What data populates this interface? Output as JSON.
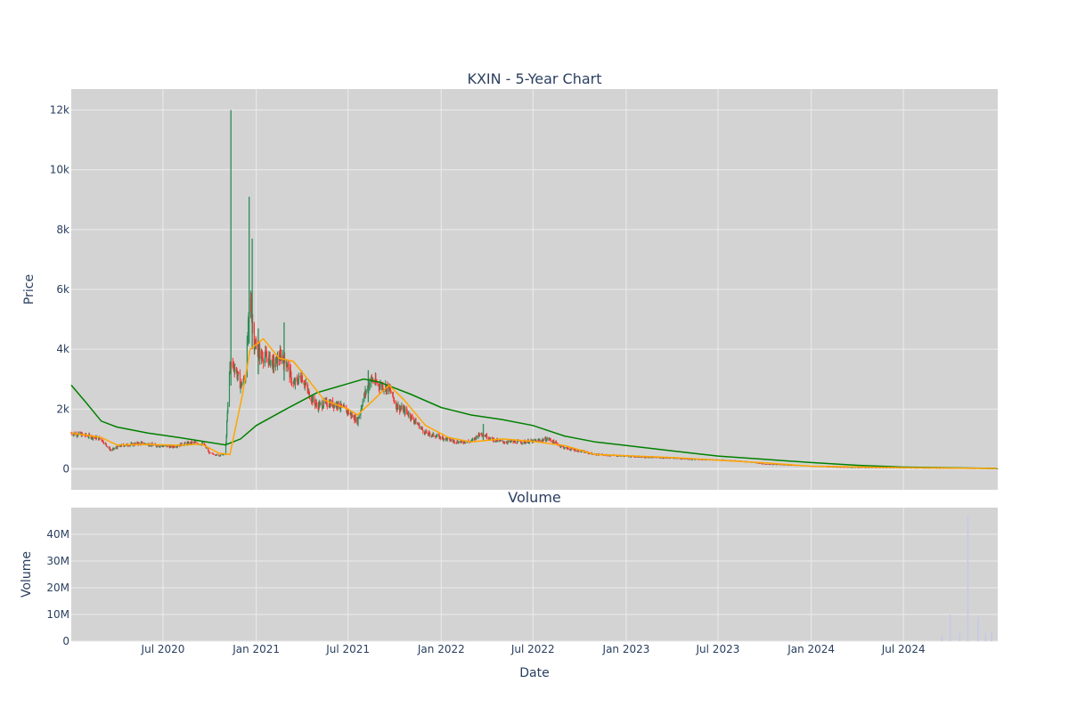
{
  "colors": {
    "background": "#ffffff",
    "plot_bg": "#d3d3d3",
    "grid": "#ebebeb",
    "text": "#2a3f5f",
    "candle_up": "#2e8b57",
    "candle_down": "#ff3333",
    "ma_short": "#ffa500",
    "ma_long": "#008000",
    "volume_bar": "#c6c8e8"
  },
  "chart_data": [
    {
      "type": "candlestick",
      "title": "KXIN - 5-Year Chart",
      "xlabel": "",
      "ylabel": "Price",
      "ylim": [
        -700,
        12700
      ],
      "yticks": [
        0,
        2000,
        4000,
        6000,
        8000,
        10000,
        12000
      ],
      "ytick_labels": [
        "0",
        "2k",
        "4k",
        "6k",
        "8k",
        "10k",
        "12k"
      ],
      "grid": true,
      "price_path": [
        [
          "2020-01-02",
          1200
        ],
        [
          "2020-01-20",
          1150
        ],
        [
          "2020-02-10",
          1080
        ],
        [
          "2020-03-01",
          1000
        ],
        [
          "2020-03-20",
          620
        ],
        [
          "2020-04-10",
          780
        ],
        [
          "2020-05-01",
          820
        ],
        [
          "2020-05-20",
          860
        ],
        [
          "2020-06-10",
          800
        ],
        [
          "2020-07-01",
          760
        ],
        [
          "2020-07-20",
          740
        ],
        [
          "2020-08-10",
          830
        ],
        [
          "2020-09-01",
          880
        ],
        [
          "2020-09-20",
          820
        ],
        [
          "2020-10-01",
          520
        ],
        [
          "2020-10-20",
          450
        ],
        [
          "2020-11-01",
          500
        ],
        [
          "2020-11-10",
          3500
        ],
        [
          "2020-11-20",
          3400
        ],
        [
          "2020-12-01",
          2800
        ],
        [
          "2020-12-10",
          3000
        ],
        [
          "2020-12-20",
          5800
        ],
        [
          "2020-12-28",
          4200
        ],
        [
          "2021-01-10",
          3800
        ],
        [
          "2021-01-25",
          3700
        ],
        [
          "2021-02-05",
          3500
        ],
        [
          "2021-02-20",
          3800
        ],
        [
          "2021-03-01",
          3600
        ],
        [
          "2021-03-15",
          2800
        ],
        [
          "2021-04-01",
          3100
        ],
        [
          "2021-04-15",
          2500
        ],
        [
          "2021-05-01",
          2100
        ],
        [
          "2021-05-20",
          2200
        ],
        [
          "2021-06-10",
          2150
        ],
        [
          "2021-07-01",
          1900
        ],
        [
          "2021-07-20",
          1600
        ],
        [
          "2021-08-01",
          2400
        ],
        [
          "2021-08-15",
          3000
        ],
        [
          "2021-09-01",
          2800
        ],
        [
          "2021-09-20",
          2700
        ],
        [
          "2021-10-05",
          2100
        ],
        [
          "2021-10-25",
          1900
        ],
        [
          "2021-11-15",
          1500
        ],
        [
          "2021-12-01",
          1200
        ],
        [
          "2022-01-01",
          1050
        ],
        [
          "2022-02-01",
          900
        ],
        [
          "2022-03-01",
          920
        ],
        [
          "2022-03-20",
          1200
        ],
        [
          "2022-04-10",
          1000
        ],
        [
          "2022-05-01",
          900
        ],
        [
          "2022-06-01",
          900
        ],
        [
          "2022-07-01",
          920
        ],
        [
          "2022-08-01",
          1000
        ],
        [
          "2022-09-01",
          700
        ],
        [
          "2022-10-01",
          600
        ],
        [
          "2022-11-01",
          480
        ],
        [
          "2022-12-01",
          450
        ],
        [
          "2023-01-01",
          430
        ],
        [
          "2023-02-01",
          400
        ],
        [
          "2023-03-01",
          380
        ],
        [
          "2023-04-01",
          360
        ],
        [
          "2023-05-01",
          330
        ],
        [
          "2023-06-01",
          310
        ],
        [
          "2023-07-01",
          300
        ],
        [
          "2023-08-01",
          270
        ],
        [
          "2023-09-01",
          230
        ],
        [
          "2023-10-01",
          160
        ],
        [
          "2023-11-01",
          140
        ],
        [
          "2023-12-01",
          120
        ],
        [
          "2024-01-01",
          90
        ],
        [
          "2024-02-01",
          70
        ],
        [
          "2024-03-01",
          50
        ],
        [
          "2024-05-01",
          40
        ],
        [
          "2024-07-01",
          30
        ],
        [
          "2024-09-01",
          25
        ],
        [
          "2024-11-01",
          15
        ],
        [
          "2025-01-01",
          10
        ]
      ],
      "spikes": [
        {
          "date": "2020-11-12",
          "high": 12000
        },
        {
          "date": "2020-12-18",
          "high": 9100
        },
        {
          "date": "2020-12-24",
          "high": 7700
        },
        {
          "date": "2021-01-05",
          "high": 4700
        },
        {
          "date": "2021-02-25",
          "high": 4900
        },
        {
          "date": "2021-08-10",
          "high": 3300
        },
        {
          "date": "2022-03-25",
          "high": 1500
        }
      ],
      "ma_short": [
        [
          "2020-01-02",
          1200
        ],
        [
          "2020-03-01",
          1050
        ],
        [
          "2020-04-01",
          800
        ],
        [
          "2020-06-01",
          820
        ],
        [
          "2020-08-01",
          790
        ],
        [
          "2020-09-15",
          830
        ],
        [
          "2020-10-20",
          520
        ],
        [
          "2020-11-10",
          480
        ],
        [
          "2020-12-05",
          2500
        ],
        [
          "2020-12-20",
          4000
        ],
        [
          "2021-01-15",
          4350
        ],
        [
          "2021-02-15",
          3700
        ],
        [
          "2021-03-15",
          3600
        ],
        [
          "2021-04-15",
          2950
        ],
        [
          "2021-05-15",
          2300
        ],
        [
          "2021-07-01",
          2000
        ],
        [
          "2021-07-20",
          1800
        ],
        [
          "2021-08-20",
          2300
        ],
        [
          "2021-09-20",
          2800
        ],
        [
          "2021-10-20",
          2300
        ],
        [
          "2021-12-01",
          1450
        ],
        [
          "2022-01-15",
          1050
        ],
        [
          "2022-03-01",
          900
        ],
        [
          "2022-05-01",
          1000
        ],
        [
          "2022-07-01",
          920
        ],
        [
          "2022-09-01",
          780
        ],
        [
          "2022-11-01",
          480
        ],
        [
          "2023-01-01",
          440
        ],
        [
          "2023-04-01",
          380
        ],
        [
          "2023-07-01",
          290
        ],
        [
          "2023-10-01",
          200
        ],
        [
          "2024-01-01",
          90
        ],
        [
          "2024-07-01",
          40
        ],
        [
          "2025-01-01",
          15
        ]
      ],
      "ma_long": [
        [
          "2020-01-02",
          2800
        ],
        [
          "2020-02-01",
          2200
        ],
        [
          "2020-03-01",
          1600
        ],
        [
          "2020-04-01",
          1400
        ],
        [
          "2020-06-01",
          1200
        ],
        [
          "2020-08-01",
          1050
        ],
        [
          "2020-11-01",
          800
        ],
        [
          "2020-12-01",
          1000
        ],
        [
          "2021-01-01",
          1450
        ],
        [
          "2021-03-01",
          2000
        ],
        [
          "2021-05-01",
          2550
        ],
        [
          "2021-07-01",
          2850
        ],
        [
          "2021-08-01",
          3000
        ],
        [
          "2021-09-01",
          2900
        ],
        [
          "2021-11-01",
          2500
        ],
        [
          "2022-01-01",
          2050
        ],
        [
          "2022-03-01",
          1800
        ],
        [
          "2022-05-01",
          1650
        ],
        [
          "2022-07-01",
          1450
        ],
        [
          "2022-09-01",
          1100
        ],
        [
          "2022-11-01",
          900
        ],
        [
          "2023-01-01",
          780
        ],
        [
          "2023-04-01",
          600
        ],
        [
          "2023-07-01",
          430
        ],
        [
          "2023-10-01",
          320
        ],
        [
          "2024-01-01",
          210
        ],
        [
          "2024-04-01",
          120
        ],
        [
          "2024-07-01",
          60
        ],
        [
          "2025-01-01",
          15
        ]
      ]
    },
    {
      "type": "bar",
      "title": "Volume",
      "xlabel": "Date",
      "ylabel": "Volume",
      "ylim": [
        0,
        50000000
      ],
      "yticks": [
        0,
        10000000,
        20000000,
        30000000,
        40000000
      ],
      "ytick_labels": [
        "0",
        "10M",
        "20M",
        "30M",
        "40M"
      ],
      "grid": true,
      "x": [
        "2024-09-15",
        "2024-10-01",
        "2024-10-20",
        "2024-11-05",
        "2024-11-25",
        "2024-12-10",
        "2024-12-22"
      ],
      "values": [
        2000000,
        10000000,
        3000000,
        47000000,
        9000000,
        3000000,
        3500000
      ]
    }
  ],
  "x_axis": {
    "range": [
      "2020-01-02",
      "2025-01-03"
    ],
    "ticks": [
      "2020-07-01",
      "2021-01-01",
      "2021-07-01",
      "2022-01-01",
      "2022-07-01",
      "2023-01-01",
      "2023-07-01",
      "2024-01-01",
      "2024-07-01"
    ],
    "tick_labels": [
      "Jul 2020",
      "Jan 2021",
      "Jul 2021",
      "Jan 2022",
      "Jul 2022",
      "Jan 2023",
      "Jul 2023",
      "Jan 2024",
      "Jul 2024"
    ]
  }
}
